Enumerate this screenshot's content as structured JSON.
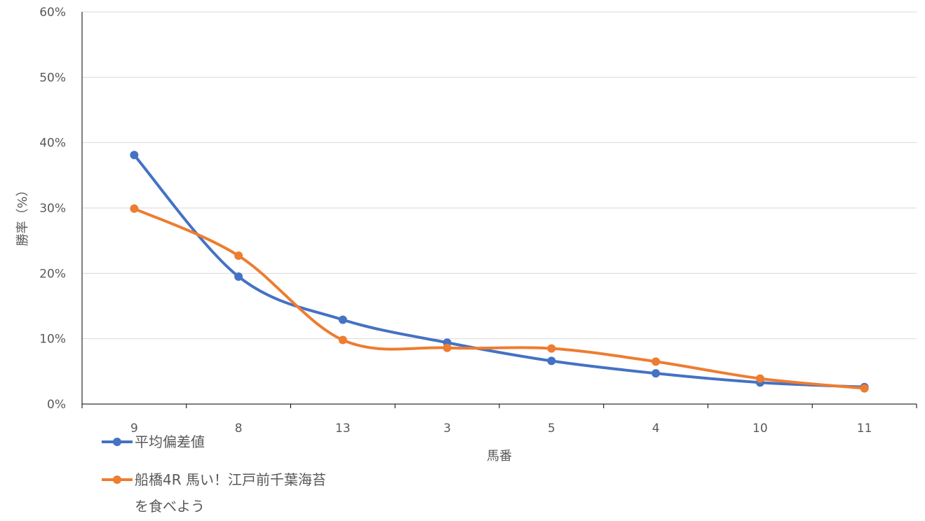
{
  "chart_data": {
    "type": "line",
    "title": "",
    "xlabel": "馬番",
    "ylabel": "勝率（%）",
    "categories": [
      "9",
      "8",
      "13",
      "3",
      "5",
      "4",
      "10",
      "11"
    ],
    "ylim": [
      0,
      60
    ],
    "yticks": [
      "0%",
      "10%",
      "20%",
      "30%",
      "40%",
      "50%",
      "60%"
    ],
    "grid": true,
    "legend": "bottom-left",
    "series": [
      {
        "name": "平均偏差値",
        "color": "#4472C4",
        "values": [
          38.1,
          19.5,
          12.9,
          9.4,
          6.6,
          4.7,
          3.3,
          2.6
        ]
      },
      {
        "name": "船橋4R 馬い！江戸前千葉海苔を食べよう",
        "name_line1": "船橋4R 馬い！江戸前千葉海苔",
        "name_line2": "を食べよう",
        "color": "#ED7D31",
        "values": [
          29.9,
          22.7,
          9.8,
          8.6,
          8.5,
          6.5,
          3.9,
          2.4
        ]
      }
    ]
  }
}
